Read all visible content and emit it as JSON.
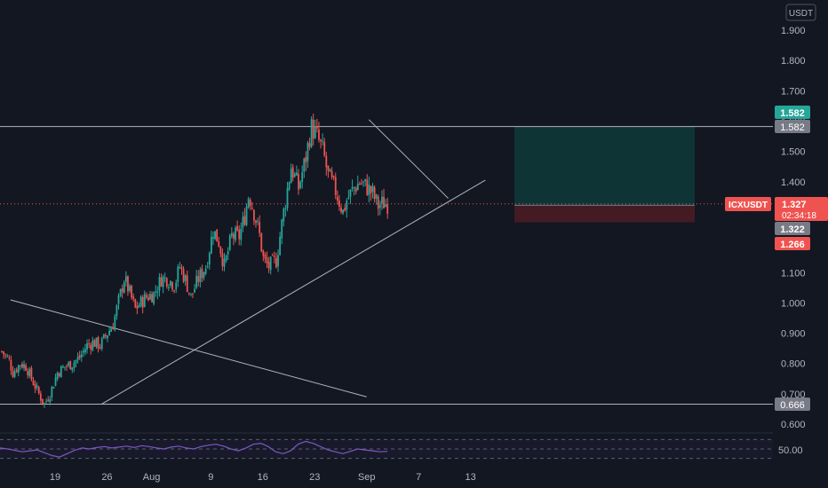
{
  "currency_badge": "USDT",
  "price_axis": {
    "ticks": [
      "1.900",
      "1.800",
      "1.700",
      "1.600",
      "1.500",
      "1.400",
      "1.300",
      "1.200",
      "1.100",
      "1.000",
      "0.900",
      "0.800",
      "0.700",
      "0.600"
    ]
  },
  "time_axis": {
    "ticks": [
      "19",
      "26",
      "Aug",
      "9",
      "16",
      "23",
      "Sep",
      "7",
      "13"
    ]
  },
  "rsi_axis": {
    "tick": "50.00"
  },
  "price_labels": {
    "target_green": "1.582",
    "resistance_gray": "1.582",
    "symbol": "ICXUSDT",
    "current_price": "1.327",
    "countdown": "02:34:18",
    "entry_gray": "1.322",
    "stop_red": "1.266",
    "support_gray": "0.666"
  },
  "colors": {
    "background": "#131722",
    "up_candle": "#26a69a",
    "down_candle": "#ef5350",
    "trendline": "#b2b5be",
    "rsi_line": "#7e57c2",
    "target_zone": "#0e3a3a",
    "stop_zone": "#4a1c22"
  },
  "chart_data": {
    "type": "candlestick",
    "symbol": "ICXUSDT",
    "quote": "USDT",
    "y_range": [
      0.57,
      1.97
    ],
    "x_ticks": [
      "19",
      "26",
      "Aug",
      "9",
      "16",
      "23",
      "Sep",
      "7",
      "13"
    ],
    "close_path": [
      {
        "d": 0.0,
        "c": 0.84
      },
      {
        "d": 1.0,
        "c": 0.81
      },
      {
        "d": 1.5,
        "c": 0.77
      },
      {
        "d": 2.5,
        "c": 0.8
      },
      {
        "d": 3.3,
        "c": 0.79
      },
      {
        "d": 4.0,
        "c": 0.75
      },
      {
        "d": 5.0,
        "c": 0.7
      },
      {
        "d": 5.7,
        "c": 0.665
      },
      {
        "d": 6.5,
        "c": 0.7
      },
      {
        "d": 7.5,
        "c": 0.77
      },
      {
        "d": 8.5,
        "c": 0.79
      },
      {
        "d": 9.5,
        "c": 0.8
      },
      {
        "d": 10.5,
        "c": 0.82
      },
      {
        "d": 11.5,
        "c": 0.86
      },
      {
        "d": 12.3,
        "c": 0.87
      },
      {
        "d": 13.3,
        "c": 0.86
      },
      {
        "d": 14.0,
        "c": 0.89
      },
      {
        "d": 15.0,
        "c": 0.93
      },
      {
        "d": 15.5,
        "c": 0.98
      },
      {
        "d": 16.5,
        "c": 1.08
      },
      {
        "d": 17.0,
        "c": 1.05
      },
      {
        "d": 18.0,
        "c": 0.98
      },
      {
        "d": 18.7,
        "c": 1.0
      },
      {
        "d": 19.5,
        "c": 1.02
      },
      {
        "d": 20.5,
        "c": 1.03
      },
      {
        "d": 21.5,
        "c": 1.08
      },
      {
        "d": 22.3,
        "c": 1.08
      },
      {
        "d": 23.3,
        "c": 1.06
      },
      {
        "d": 24.0,
        "c": 1.12
      },
      {
        "d": 24.7,
        "c": 1.08
      },
      {
        "d": 25.5,
        "c": 1.02
      },
      {
        "d": 26.5,
        "c": 1.08
      },
      {
        "d": 27.5,
        "c": 1.12
      },
      {
        "d": 28.5,
        "c": 1.24
      },
      {
        "d": 29.3,
        "c": 1.2
      },
      {
        "d": 30.0,
        "c": 1.12
      },
      {
        "d": 31.0,
        "c": 1.22
      },
      {
        "d": 32.0,
        "c": 1.22
      },
      {
        "d": 32.7,
        "c": 1.28
      },
      {
        "d": 33.3,
        "c": 1.36
      },
      {
        "d": 34.0,
        "c": 1.3
      },
      {
        "d": 34.7,
        "c": 1.23
      },
      {
        "d": 35.3,
        "c": 1.14
      },
      {
        "d": 36.0,
        "c": 1.12
      },
      {
        "d": 37.0,
        "c": 1.14
      },
      {
        "d": 38.0,
        "c": 1.3
      },
      {
        "d": 39.0,
        "c": 1.45
      },
      {
        "d": 40.0,
        "c": 1.38
      },
      {
        "d": 41.0,
        "c": 1.48
      },
      {
        "d": 41.7,
        "c": 1.58
      },
      {
        "d": 42.3,
        "c": 1.56
      },
      {
        "d": 43.3,
        "c": 1.5
      },
      {
        "d": 44.0,
        "c": 1.42
      },
      {
        "d": 45.0,
        "c": 1.37
      },
      {
        "d": 46.0,
        "c": 1.3
      },
      {
        "d": 46.5,
        "c": 1.34
      },
      {
        "d": 47.5,
        "c": 1.38
      },
      {
        "d": 48.3,
        "c": 1.4
      },
      {
        "d": 49.3,
        "c": 1.38
      },
      {
        "d": 50.0,
        "c": 1.36
      },
      {
        "d": 50.7,
        "c": 1.32
      },
      {
        "d": 51.5,
        "c": 1.33
      },
      {
        "d": 52.0,
        "c": 1.327
      }
    ],
    "horizontal_levels": [
      1.582,
      0.666
    ],
    "trendlines": [
      {
        "name": "ascending support",
        "from": {
          "d": 6.2,
          "p": 0.665
        },
        "to": {
          "d": 58.0,
          "p": 1.405
        }
      },
      {
        "name": "descending resistance",
        "from": {
          "d": 42.3,
          "p": 1.605
        },
        "to": {
          "d": 53.0,
          "p": 1.345
        }
      },
      {
        "name": "long descending line",
        "from": {
          "d": -6.0,
          "p": 1.01
        },
        "to": {
          "d": 42.0,
          "p": 0.69
        }
      }
    ],
    "position": {
      "entry": 1.322,
      "target": 1.582,
      "stop": 1.266,
      "from_d": 51.5,
      "to_d": 60.0
    },
    "current_price": 1.327,
    "rsi": {
      "level_lines": [
        70,
        50,
        30
      ],
      "values": [
        52,
        50,
        47,
        44,
        46,
        48,
        42,
        36,
        33,
        40,
        47,
        52,
        50,
        53,
        55,
        52,
        54,
        56,
        53,
        57,
        55,
        52,
        50,
        54,
        56,
        52,
        50,
        55,
        58,
        60,
        56,
        50,
        46,
        52,
        60,
        62,
        55,
        44,
        40,
        46,
        60,
        66,
        62,
        55,
        48,
        44,
        40,
        45,
        50,
        48,
        46,
        44,
        45
      ]
    }
  }
}
